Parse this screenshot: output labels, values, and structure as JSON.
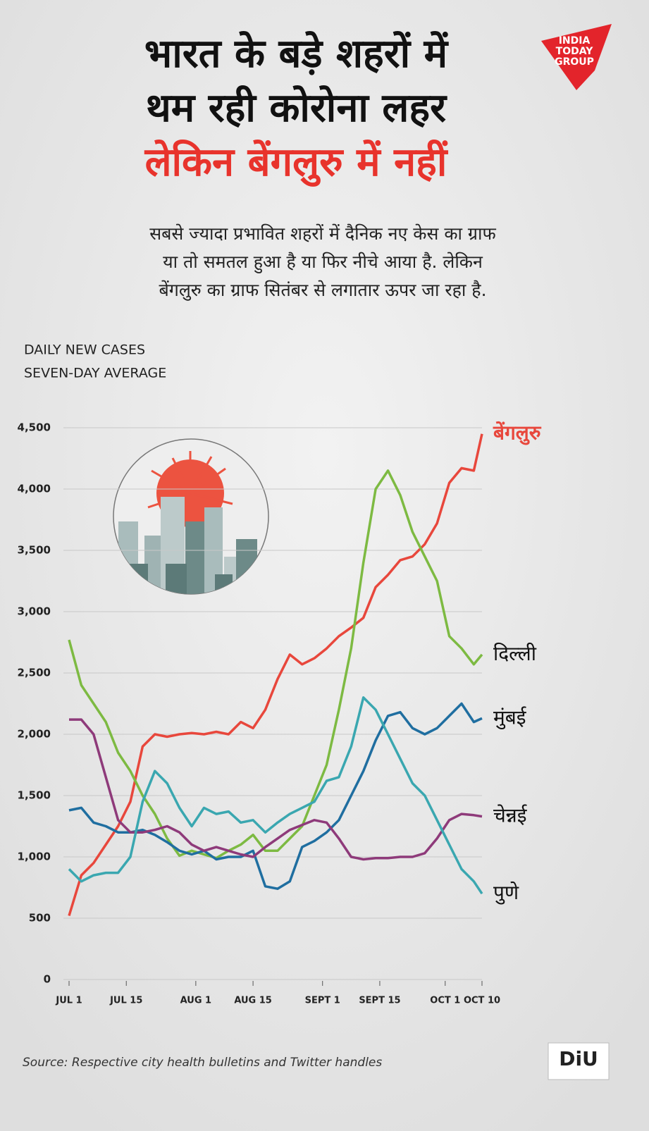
{
  "header": {
    "title_lines": [
      "भारत के बड़े शहरों में",
      "थम रही कोरोना लहर",
      "लेकिन बेंगलुरु में नहीं"
    ],
    "subtitle_lines": [
      "सबसे ज्यादा प्रभावित शहरों में दैनिक नए केस का ग्राफ",
      "या तो समतल हुआ है या फिर नीचे आया है. लेकिन",
      "बेंगलुरु का ग्राफ सितंबर से लगातार ऊपर जा रहा है."
    ]
  },
  "logo": [
    "INDIA",
    "TODAY",
    "GROUP"
  ],
  "chart_data": {
    "type": "line",
    "ylabel_lines": [
      "DAILY NEW CASES",
      "SEVEN-DAY AVERAGE"
    ],
    "x": [
      0,
      3,
      6,
      9,
      12,
      15,
      18,
      21,
      24,
      27,
      30,
      33,
      36,
      39,
      42,
      45,
      48,
      51,
      54,
      57,
      60,
      63,
      66,
      69,
      72,
      75,
      78,
      81,
      84,
      87,
      90,
      93,
      96,
      99,
      101
    ],
    "xlim": [
      0,
      101
    ],
    "xticks": [
      {
        "value": 0,
        "label": "JUL 1"
      },
      {
        "value": 14,
        "label": "JUL 15"
      },
      {
        "value": 31,
        "label": "AUG 1"
      },
      {
        "value": 45,
        "label": "AUG 15"
      },
      {
        "value": 62,
        "label": "SEPT 1"
      },
      {
        "value": 76,
        "label": "SEPT 15"
      },
      {
        "value": 92,
        "label": "OCT 1"
      },
      {
        "value": 101,
        "label": "OCT 10"
      }
    ],
    "ylim": [
      0,
      4500
    ],
    "yticks": [
      0,
      500,
      {
        "value": 1000,
        "label": "1,000"
      },
      {
        "value": 1500,
        "label": "1,500"
      },
      {
        "value": 2000,
        "label": "2,000"
      },
      {
        "value": 2500,
        "label": "2,500"
      },
      {
        "value": 3000,
        "label": "3,000"
      },
      {
        "value": 3500,
        "label": "3,500"
      },
      {
        "value": 4000,
        "label": "4,000"
      },
      {
        "value": 4500,
        "label": "4,500"
      }
    ],
    "grid": true,
    "series": [
      {
        "name": "बेंगलुरु",
        "color": "#e8473c",
        "values": [
          520,
          850,
          950,
          1100,
          1250,
          1450,
          1900,
          2000,
          1980,
          2000,
          2010,
          2000,
          2020,
          2000,
          2100,
          2050,
          2200,
          2450,
          2650,
          2570,
          2620,
          2700,
          2800,
          2870,
          2950,
          3200,
          3300,
          3420,
          3450,
          3550,
          3720,
          4050,
          4170,
          4150,
          4450
        ]
      },
      {
        "name": "दिल्ली",
        "color": "#7dba42",
        "values": [
          2770,
          2400,
          2250,
          2100,
          1850,
          1700,
          1500,
          1350,
          1150,
          1010,
          1050,
          1020,
          990,
          1050,
          1100,
          1180,
          1050,
          1050,
          1150,
          1250,
          1500,
          1750,
          2200,
          2700,
          3400,
          4000,
          4150,
          3950,
          3650,
          3450,
          3250,
          2800,
          2700,
          2570,
          2650
        ]
      },
      {
        "name": "मुंबई",
        "color": "#1f6ea0",
        "values": [
          1380,
          1400,
          1280,
          1250,
          1200,
          1200,
          1220,
          1180,
          1120,
          1050,
          1020,
          1050,
          980,
          1000,
          1000,
          1050,
          760,
          740,
          800,
          1080,
          1130,
          1200,
          1300,
          1500,
          1700,
          1950,
          2150,
          2180,
          2050,
          2000,
          2050,
          2150,
          2250,
          2100,
          2130
        ]
      },
      {
        "name": "चेन्नई",
        "color": "#8e3a7a",
        "values": [
          2120,
          2120,
          2000,
          1650,
          1300,
          1200,
          1200,
          1220,
          1250,
          1200,
          1100,
          1050,
          1080,
          1050,
          1020,
          1000,
          1080,
          1150,
          1220,
          1260,
          1300,
          1280,
          1150,
          1000,
          980,
          990,
          990,
          1000,
          1000,
          1030,
          1150,
          1300,
          1350,
          1340,
          1330
        ]
      },
      {
        "name": "पुणे",
        "color": "#3aa7b0",
        "values": [
          900,
          800,
          850,
          870,
          870,
          1000,
          1450,
          1700,
          1600,
          1400,
          1250,
          1400,
          1350,
          1370,
          1280,
          1300,
          1200,
          1280,
          1350,
          1400,
          1450,
          1620,
          1650,
          1900,
          2300,
          2200,
          2000,
          1800,
          1600,
          1500,
          1300,
          1100,
          900,
          800,
          700
        ]
      }
    ]
  },
  "source": "Source: Respective city health bulletins and Twitter handles",
  "badge": "DiU"
}
